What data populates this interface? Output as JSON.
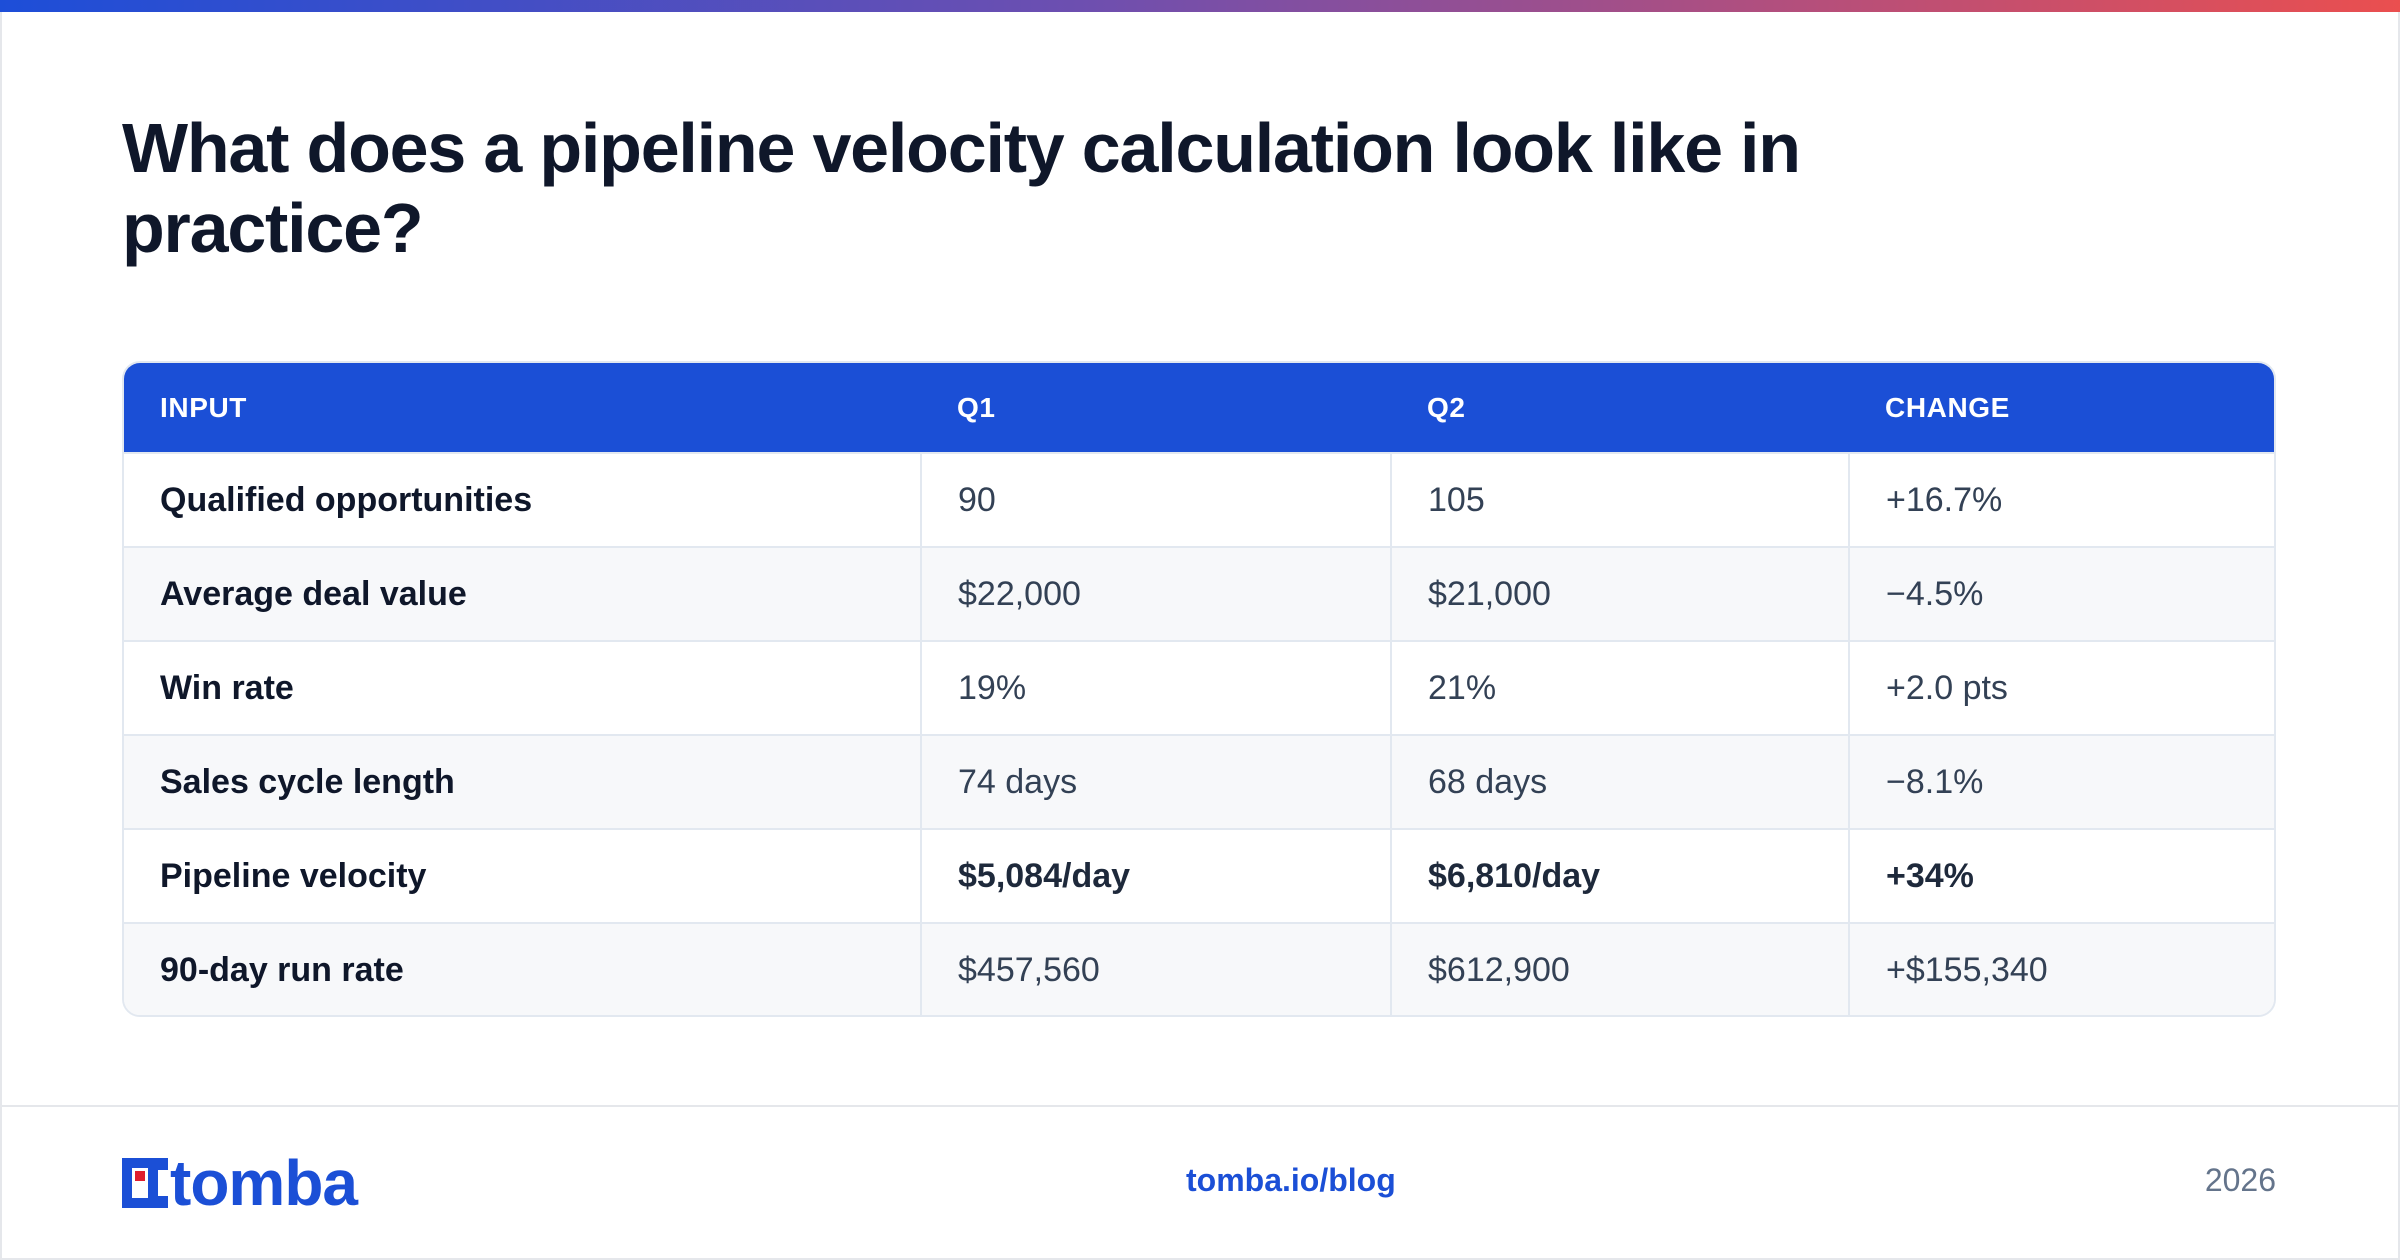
{
  "headline": "What does a pipeline velocity calculation look like in practice?",
  "table": {
    "headers": [
      "INPUT",
      "Q1",
      "Q2",
      "CHANGE"
    ],
    "rows": [
      [
        "Qualified opportunities",
        "90",
        "105",
        "+16.7%"
      ],
      [
        "Average deal value",
        "$22,000",
        "$21,000",
        "−4.5%"
      ],
      [
        "Win rate",
        "19%",
        "21%",
        "+2.0 pts"
      ],
      [
        "Sales cycle length",
        "74 days",
        "68 days",
        "−8.1%"
      ],
      [
        "Pipeline velocity",
        "$5,084/day",
        "$6,810/day",
        "+34%"
      ],
      [
        "90-day run rate",
        "$457,560",
        "$612,900",
        "+$155,340"
      ]
    ]
  },
  "footer": {
    "logo_text": "tomba",
    "link": "tomba.io/blog",
    "year": "2026"
  },
  "colors": {
    "accent": "#1b4fd6",
    "logo_red": "#e11d2e"
  }
}
